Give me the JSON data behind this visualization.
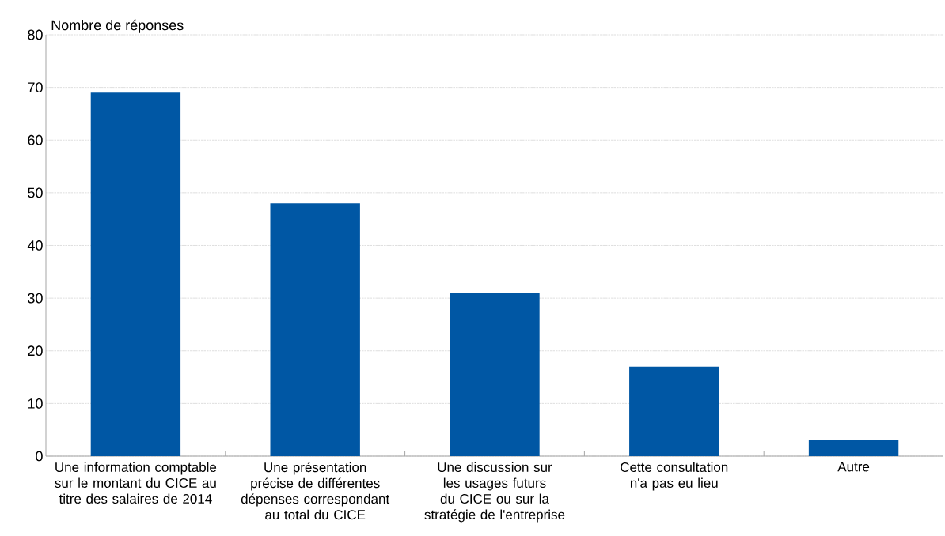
{
  "chart_data": {
    "type": "bar",
    "ylabel": "Nombre de réponses",
    "categories": [
      "Une information comptable sur le montant du CICE au titre des salaires de 2014",
      "Une présentation précise de différentes dépenses correspondant au total du CICE",
      "Une discussion sur les usages futurs du CICE ou sur la stratégie de l'entreprise",
      "Cette consultation n'a pas eu lieu",
      "Autre"
    ],
    "values": [
      69,
      48,
      31,
      17,
      3
    ],
    "color": "#0057a4",
    "ylim": [
      0,
      80
    ],
    "yticks": [
      0,
      10,
      20,
      30,
      40,
      50,
      60,
      70,
      80
    ],
    "grid": "y"
  }
}
